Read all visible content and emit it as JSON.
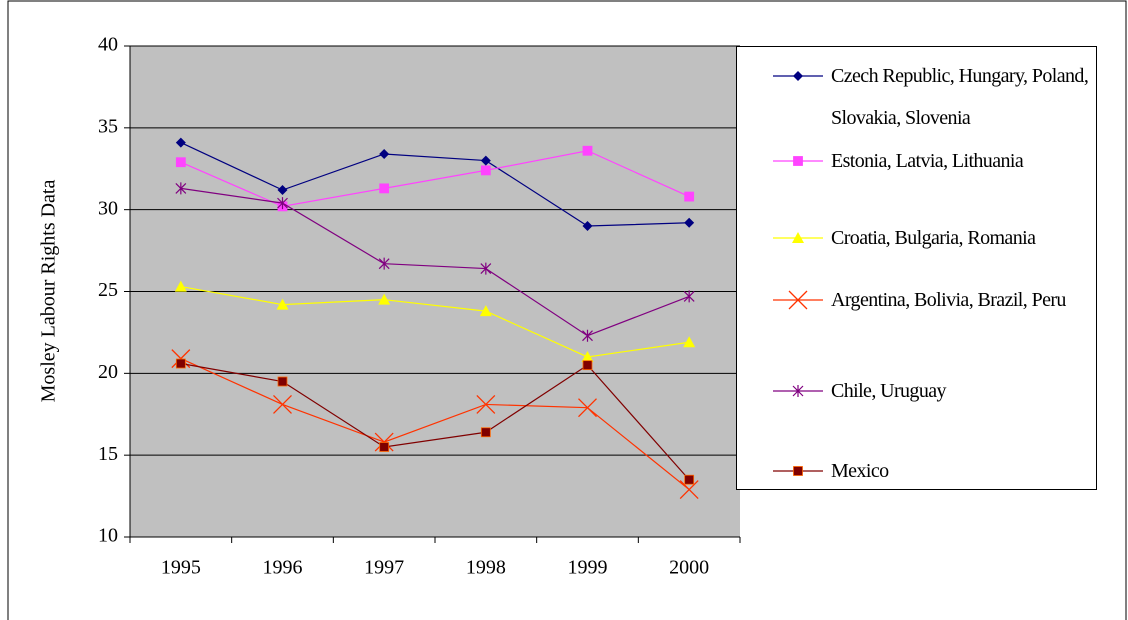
{
  "chart_data": {
    "type": "line",
    "y_label": "Mosley Labour Rights Data",
    "categories": [
      "1995",
      "1996",
      "1997",
      "1998",
      "1999",
      "2000"
    ],
    "series": [
      {
        "name": "Czech Republic, Hungary, Poland, Slovakia, Slovenia",
        "color": "#000080",
        "marker": "diamond",
        "values": [
          34.1,
          31.2,
          33.4,
          33.0,
          29.0,
          29.2
        ]
      },
      {
        "name": "Estonia, Latvia, Lithuania",
        "color": "#ff44ff",
        "marker": "square",
        "values": [
          32.9,
          30.2,
          31.3,
          32.4,
          33.6,
          30.8
        ]
      },
      {
        "name": "Croatia, Bulgaria, Romania",
        "color": "#ffff00",
        "marker": "triangle",
        "values": [
          25.3,
          24.2,
          24.5,
          23.8,
          21.0,
          21.9
        ]
      },
      {
        "name": "Argentina, Bolivia, Brazil, Peru",
        "color": "#ff3300",
        "marker": "x",
        "values": [
          20.9,
          18.1,
          15.8,
          18.1,
          17.9,
          12.9
        ]
      },
      {
        "name": "Chile, Uruguay",
        "color": "#800080",
        "marker": "star",
        "values": [
          31.3,
          30.4,
          26.7,
          26.4,
          22.3,
          24.7
        ]
      },
      {
        "name": "Mexico",
        "color": "#800000",
        "marker": "square",
        "values": [
          20.6,
          19.5,
          15.5,
          16.4,
          20.5,
          13.5
        ]
      }
    ],
    "ylim": [
      10,
      40
    ],
    "yticks": [
      10,
      15,
      20,
      25,
      30,
      35,
      40
    ],
    "grid": true,
    "legend": "right"
  }
}
